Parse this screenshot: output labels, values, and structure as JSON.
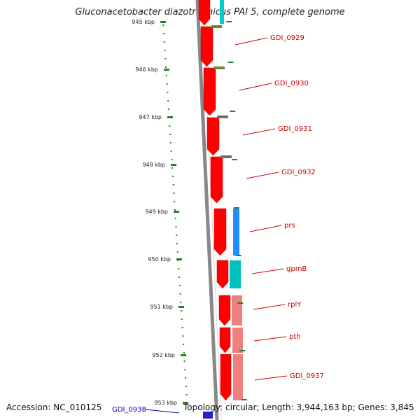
{
  "title": "Gluconacetobacter diazotrophicus PAI 5, complete genome",
  "accession": "Accession: NC_010125",
  "topology": "Topology: circular; Length: 3,944,163 bp; Genes: 3,845",
  "colors": {
    "forward_cds": "#ff0000",
    "backbone": "#888888",
    "scale_dots": "#2a7f2a",
    "label_red": "#cc0000",
    "label_blue": "#0000bb"
  },
  "scale_ticks": [
    {
      "label": "945 kbp"
    },
    {
      "label": "946 kbp"
    },
    {
      "label": "947 kbp"
    },
    {
      "label": "948 kbp"
    },
    {
      "label": "949 kbp"
    },
    {
      "label": "950 kbp"
    },
    {
      "label": "951 kbp"
    },
    {
      "label": "952 kbp"
    },
    {
      "label": "953 kbp"
    }
  ],
  "genes": [
    {
      "label": "GDI_0929",
      "cog_color": "#6b8e23"
    },
    {
      "label": "GDI_0930",
      "cog_color": "#6e6e6e"
    },
    {
      "label": "GDI_0931",
      "cog_color": "#6e6e6e"
    },
    {
      "label": "GDI_0932",
      "cog_color": ""
    },
    {
      "label": "prs",
      "cog_color": "#1e90ff"
    },
    {
      "label": "gpmB",
      "cog_color": "#00bfbf"
    },
    {
      "label": "rplY",
      "cog_color": "#f08080"
    },
    {
      "label": "pth",
      "cog_color": "#f08080"
    },
    {
      "label": "GDI_0937",
      "cog_color": "#f08080"
    },
    {
      "label": "GDI_0938",
      "cog_color": ""
    }
  ]
}
